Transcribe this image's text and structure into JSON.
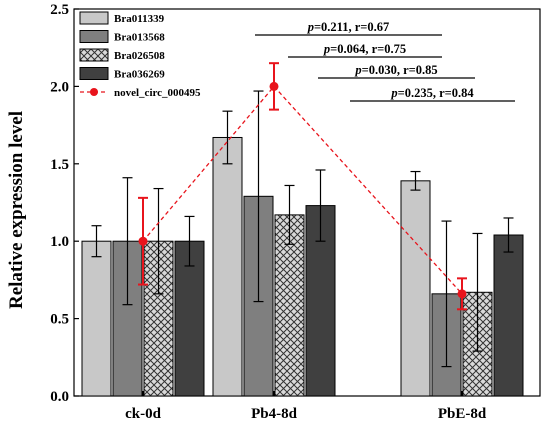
{
  "chart_data": {
    "type": "bar",
    "ylabel": "Relative expression level",
    "ylim": [
      0,
      2.5
    ],
    "yticks": [
      "0.0",
      "0.5",
      "1.0",
      "1.5",
      "2.0",
      "2.5"
    ],
    "categories": [
      "ck-0d",
      "Pb4-8d",
      "PbE-8d"
    ],
    "series": [
      {
        "name": "Bra011339",
        "values": [
          1.0,
          1.67,
          1.39
        ],
        "errors": [
          0.1,
          0.17,
          0.06
        ],
        "color": "#c8c8c8"
      },
      {
        "name": "Bra013568",
        "values": [
          1.0,
          1.29,
          0.66
        ],
        "errors": [
          0.41,
          0.68,
          0.47
        ],
        "color": "#7f7f7f"
      },
      {
        "name": "Bra026508",
        "values": [
          1.0,
          1.17,
          0.67
        ],
        "errors": [
          0.34,
          0.19,
          0.38
        ],
        "color": "#cccccc",
        "pattern": "crosshatch"
      },
      {
        "name": "Bra036269",
        "values": [
          1.0,
          1.23,
          1.04
        ],
        "errors": [
          0.16,
          0.23,
          0.11
        ],
        "color": "#404040"
      }
    ],
    "line_series": {
      "name": "novel_circ_000495",
      "values": [
        1.0,
        2.0,
        0.66
      ],
      "errors": [
        0.28,
        0.15,
        0.1
      ],
      "color": "#e8141c"
    },
    "legend_position": "top-left",
    "annotations": [
      {
        "p": "p",
        "text": "=0.211, r=0.67"
      },
      {
        "p": "p",
        "text": "=0.064, r=0.75"
      },
      {
        "p": "p",
        "text": "=0.030, r=0.85"
      },
      {
        "p": "p",
        "text": "=0.235, r=0.84"
      }
    ]
  }
}
